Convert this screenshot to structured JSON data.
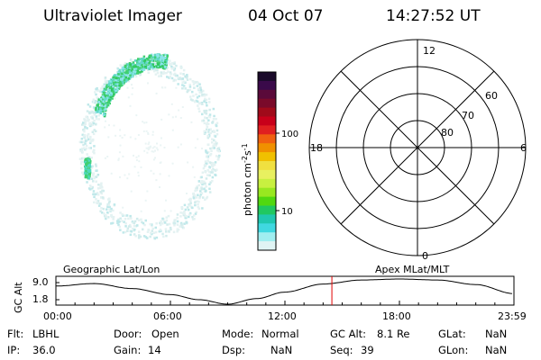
{
  "header": {
    "instrument": "Ultraviolet Imager",
    "date": "04 Oct 07",
    "time": "14:27:52 UT"
  },
  "colorbar": {
    "label": "photon cm-2s-1",
    "ticks": [
      "100",
      "10"
    ],
    "colors": [
      "#1a0a2a",
      "#3a0a4a",
      "#5a0a3a",
      "#7a0a2a",
      "#a00a1a",
      "#c8001a",
      "#e02020",
      "#f06010",
      "#f09000",
      "#f0c000",
      "#f0e040",
      "#e8f060",
      "#c8f040",
      "#98e820",
      "#50d810",
      "#20c860",
      "#20c8b0",
      "#40d8e0",
      "#a0eef0",
      "#e0f4f4"
    ]
  },
  "polar_grid": {
    "mlt_labels": [
      "12",
      "18",
      "6",
      "0"
    ],
    "lat_labels": [
      "60",
      "70",
      "80"
    ]
  },
  "timeline": {
    "y_label": "GC Alt",
    "y_ticks": [
      "9.0",
      "1.8"
    ],
    "left_title": "Geographic Lat/Lon",
    "right_title": "Apex MLat/MLT",
    "x_ticks": [
      "00:00",
      "06:00",
      "12:00",
      "18:00",
      "23:59"
    ],
    "current_time_marker_hours": 14.46,
    "marker_color": "#e00000"
  },
  "status": {
    "row1": [
      {
        "label": "Flt:",
        "value": "LBHL"
      },
      {
        "label": "Door:",
        "value": "Open"
      },
      {
        "label": "Mode:",
        "value": "Normal"
      },
      {
        "label": "GC Alt:",
        "value": "8.1 Re"
      },
      {
        "label": "GLat:",
        "value": "NaN"
      }
    ],
    "row2": [
      {
        "label": "IP:",
        "value": "36.0"
      },
      {
        "label": "Gain:",
        "value": "14"
      },
      {
        "label": "Dsp:",
        "value": "NaN"
      },
      {
        "label": "Seq:",
        "value": "39"
      },
      {
        "label": "GLon:",
        "value": "NaN"
      }
    ]
  }
}
